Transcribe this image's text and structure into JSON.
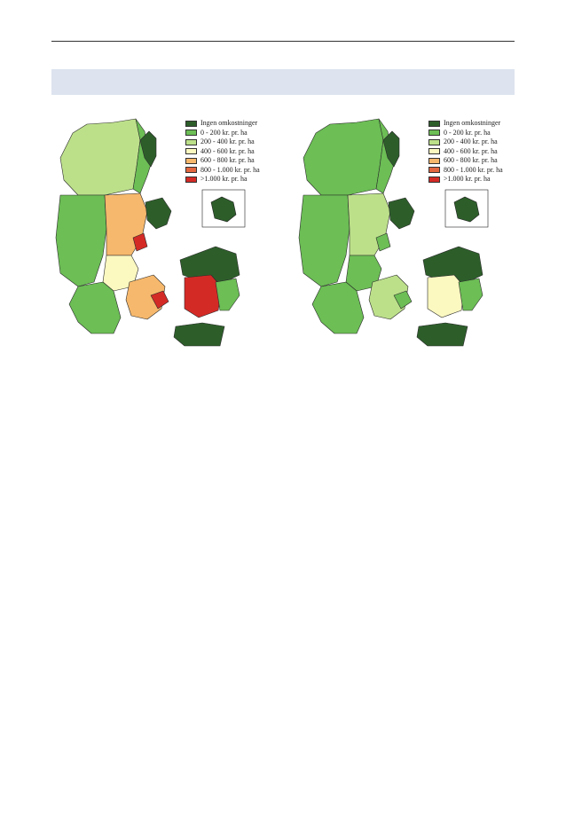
{
  "legend": {
    "items": [
      {
        "label": "Ingen omkostninger",
        "color": "#2d5e2a"
      },
      {
        "label": "0 - 200 kr. pr. ha",
        "color": "#6cbe55"
      },
      {
        "label": "200 - 400 kr. pr. ha",
        "color": "#bce08a"
      },
      {
        "label": "400 - 600 kr. pr. ha",
        "color": "#fbf8c0"
      },
      {
        "label": "600 - 800 kr. pr. ha",
        "color": "#f6b86c"
      },
      {
        "label": "800 - 1.000 kr. pr. ha",
        "color": "#e2663f"
      },
      {
        "label": ">1.000 kr. pr. ha",
        "color": "#d42a26"
      }
    ]
  },
  "maps": [
    {
      "region_classes": {
        "north_jutland_west": "200 - 400 kr. pr. ha",
        "north_jutland_east": "0 - 200 kr. pr. ha",
        "north_tip": "Ingen omkostninger",
        "west_jutland": "0 - 200 kr. pr. ha",
        "central_jutland": "600 - 800 kr. pr. ha",
        "djursland": "Ingen omkostninger",
        "aarhus": ">1.000 kr. pr. ha",
        "east_jutland_coast": "400 - 600 kr. pr. ha",
        "south_jutland": "0 - 200 kr. pr. ha",
        "funen": "600 - 800 kr. pr. ha",
        "funen_east": ">1.000 kr. pr. ha",
        "north_zealand": "Ingen omkostninger",
        "central_zealand": ">1.000 kr. pr. ha",
        "south_zealand": "0 - 200 kr. pr. ha",
        "lolland_falster": "Ingen omkostninger",
        "bornholm": "Ingen omkostninger"
      }
    },
    {
      "region_classes": {
        "north_jutland_west": "0 - 200 kr. pr. ha",
        "north_jutland_east": "0 - 200 kr. pr. ha",
        "north_tip": "Ingen omkostninger",
        "west_jutland": "0 - 200 kr. pr. ha",
        "central_jutland": "200 - 400 kr. pr. ha",
        "djursland": "Ingen omkostninger",
        "aarhus": "0 - 200 kr. pr. ha",
        "east_jutland_coast": "0 - 200 kr. pr. ha",
        "south_jutland": "0 - 200 kr. pr. ha",
        "funen": "200 - 400 kr. pr. ha",
        "funen_east": "0 - 200 kr. pr. ha",
        "north_zealand": "Ingen omkostninger",
        "central_zealand": "400 - 600 kr. pr. ha",
        "south_zealand": "0 - 200 kr. pr. ha",
        "lolland_falster": "Ingen omkostninger",
        "bornholm": "Ingen omkostninger"
      }
    }
  ]
}
